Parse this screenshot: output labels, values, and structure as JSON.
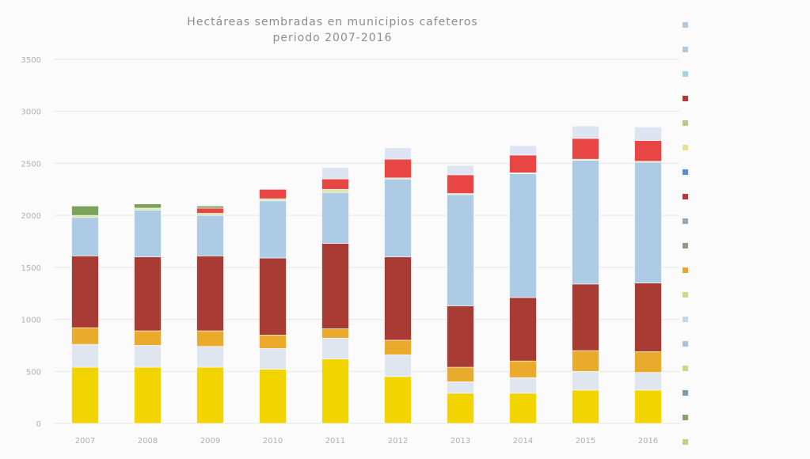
{
  "chart_data": {
    "type": "bar",
    "stacked": true,
    "title": [
      "Hectáreas sembradas en municipios cafeteros",
      "periodo 2007-2016"
    ],
    "categories": [
      "2007",
      "2008",
      "2009",
      "2010",
      "2011",
      "2012",
      "2013",
      "2014",
      "2015",
      "2016"
    ],
    "y_ticks": [
      0,
      500,
      1000,
      1500,
      2000,
      2500,
      3000,
      3500
    ],
    "ylim": [
      0,
      3500
    ],
    "grid": true,
    "legend_position": "right",
    "series": [
      {
        "color": "#f2d400",
        "values": [
          540,
          540,
          540,
          520,
          620,
          450,
          290,
          290,
          320,
          320
        ]
      },
      {
        "color": "#dfe6f0",
        "values": [
          220,
          210,
          200,
          200,
          200,
          210,
          110,
          150,
          180,
          170
        ]
      },
      {
        "color": "#eaab2c",
        "values": [
          160,
          140,
          150,
          130,
          90,
          140,
          140,
          160,
          200,
          200
        ]
      },
      {
        "color": "#a83c35",
        "values": [
          690,
          710,
          720,
          740,
          820,
          800,
          590,
          610,
          640,
          660
        ]
      },
      {
        "color": "#aecbe6",
        "values": [
          370,
          450,
          390,
          550,
          490,
          750,
          1070,
          1190,
          1190,
          1160
        ]
      },
      {
        "color": "#d8e6a6",
        "values": [
          20,
          20,
          20,
          20,
          30,
          10,
          10,
          10,
          10,
          10
        ]
      },
      {
        "color": "#e84545",
        "values": [
          0,
          0,
          50,
          90,
          100,
          180,
          180,
          170,
          200,
          200
        ]
      },
      {
        "color": "#dde5f2",
        "values": [
          0,
          0,
          0,
          0,
          110,
          110,
          90,
          90,
          120,
          130
        ]
      },
      {
        "color": "#7ba25a",
        "values": [
          90,
          40,
          20,
          0,
          0,
          0,
          0,
          0,
          0,
          0
        ]
      }
    ]
  },
  "legend": {
    "items": [
      {
        "color": "#b6c7d9"
      },
      {
        "color": "#b6c7d9"
      },
      {
        "color": "#a6d1d5"
      },
      {
        "color": "#b03a3a"
      },
      {
        "color": "#b8c98a"
      },
      {
        "color": "#e8e0a0"
      },
      {
        "color": "#5a8fc9"
      },
      {
        "color": "#b03a3a"
      },
      {
        "color": "#9aa6b0"
      },
      {
        "color": "#8e9a86"
      },
      {
        "color": "#e2a63a"
      },
      {
        "color": "#c9d98f"
      },
      {
        "color": "#c5d6ea"
      },
      {
        "color": "#a9c4e0"
      },
      {
        "color": "#c9dc8a"
      },
      {
        "color": "#7d9cab"
      },
      {
        "color": "#86a26c"
      },
      {
        "color": "#b9d48a"
      }
    ]
  }
}
